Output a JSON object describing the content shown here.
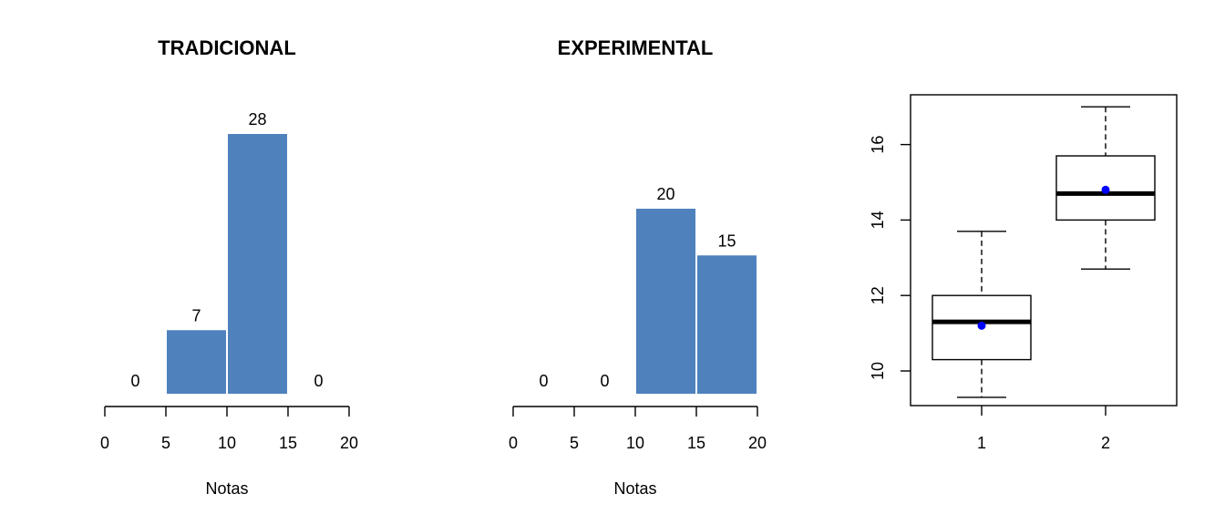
{
  "chart_data": [
    {
      "type": "bar",
      "title": "TRADICIONAL",
      "xlabel": "Notas",
      "ylabel": "",
      "bin_edges": [
        0,
        5,
        10,
        15,
        20
      ],
      "values": [
        0,
        7,
        28,
        0
      ],
      "xticks": [
        "0",
        "5",
        "10",
        "15",
        "20"
      ],
      "xlim": [
        0,
        20
      ],
      "ylim": [
        0,
        28
      ],
      "bar_color": "#4F81BD",
      "grid": false
    },
    {
      "type": "bar",
      "title": "EXPERIMENTAL",
      "xlabel": "Notas",
      "ylabel": "",
      "bin_edges": [
        0,
        5,
        10,
        15,
        20
      ],
      "values": [
        0,
        0,
        20,
        15
      ],
      "xticks": [
        "0",
        "5",
        "10",
        "15",
        "20"
      ],
      "xlim": [
        0,
        20
      ],
      "ylim": [
        0,
        28
      ],
      "bar_color": "#4F81BD",
      "grid": false
    },
    {
      "type": "boxplot",
      "title": "",
      "xlabel": "",
      "ylabel": "",
      "categories": [
        "1",
        "2"
      ],
      "boxes": [
        {
          "whisker_low": 9.3,
          "q1": 10.3,
          "median": 11.3,
          "q3": 12.0,
          "whisker_high": 13.7,
          "mean": 11.2
        },
        {
          "whisker_low": 12.7,
          "q1": 14.0,
          "median": 14.7,
          "q3": 15.7,
          "whisker_high": 17.0,
          "mean": 14.8
        }
      ],
      "yticks": [
        "10",
        "12",
        "14",
        "16"
      ],
      "ylim": [
        9.0,
        17.3
      ],
      "mean_color": "#0000FF",
      "grid": false
    }
  ]
}
